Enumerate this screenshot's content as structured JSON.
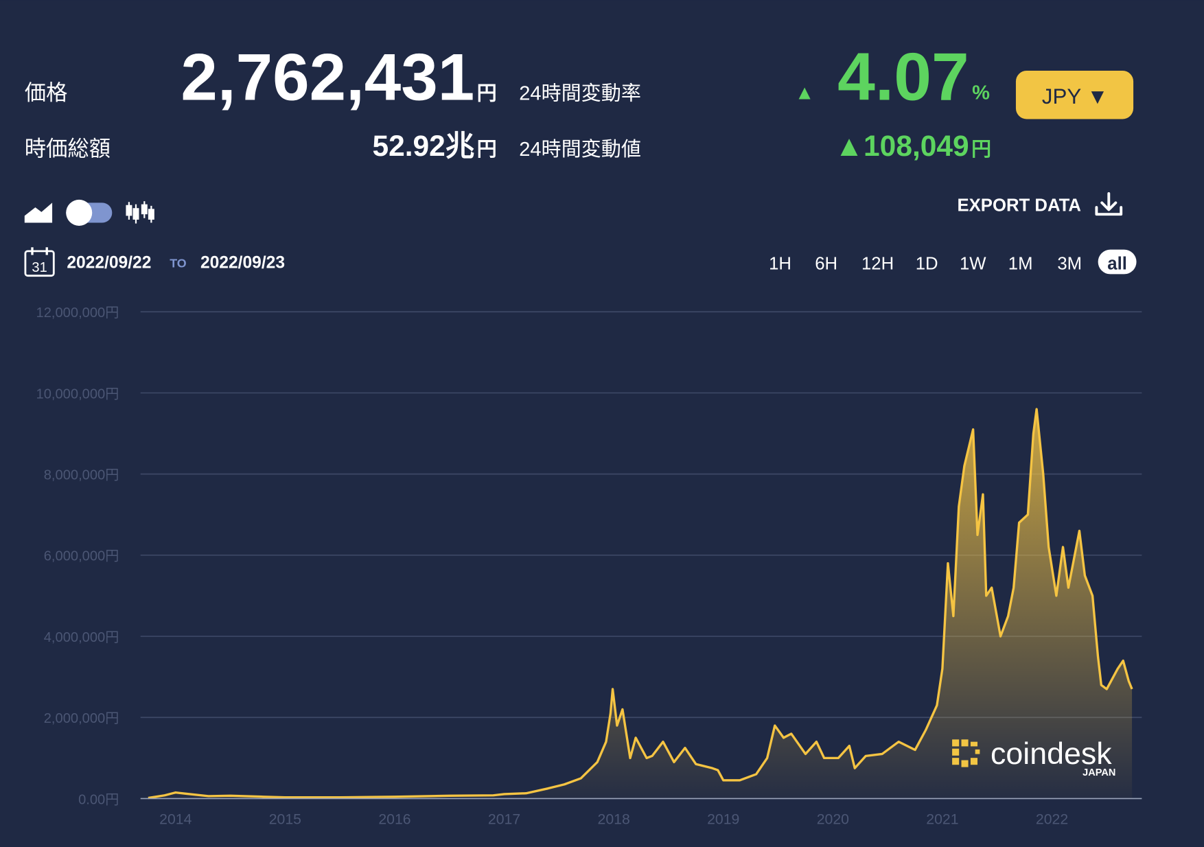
{
  "header": {
    "price_label": "価格",
    "price": "2,762,431",
    "price_unit": "円",
    "change_rate_label": "24時間変動率",
    "change_rate_arrow": "▲",
    "change_rate": "4.07",
    "change_rate_unit": "%",
    "market_cap_label": "時価総額",
    "market_cap": "52.92兆",
    "market_cap_unit": "円",
    "change_value_label": "24時間変動値",
    "change_value": "▲108,049",
    "change_value_unit": "円",
    "currency": "JPY ▼"
  },
  "toolbar": {
    "export": "EXPORT DATA",
    "calendar_day": "31",
    "date_from": "2022/09/22",
    "to": "TO",
    "date_to": "2022/09/23",
    "ranges": [
      "1H",
      "6H",
      "12H",
      "1D",
      "1W",
      "1M",
      "3M",
      "all"
    ],
    "active_range_index": 7
  },
  "watermark": {
    "brand": "coindesk",
    "region": "JAPAN"
  },
  "chart_data": {
    "type": "area",
    "color": "#f5c443",
    "grid": true,
    "xlim": [
      2013.68,
      2022.82
    ],
    "xticks": [
      2014,
      2015,
      2016,
      2017,
      2018,
      2019,
      2020,
      2021,
      2022
    ],
    "ylim": [
      0,
      12000000
    ],
    "yticks": [
      {
        "value": 0,
        "label": "0.00円"
      },
      {
        "value": 2000000,
        "label": "2,000,000円"
      },
      {
        "value": 4000000,
        "label": "4,000,000円"
      },
      {
        "value": 6000000,
        "label": "6,000,000円"
      },
      {
        "value": 8000000,
        "label": "8,000,000円"
      },
      {
        "value": 10000000,
        "label": "10,000,000円"
      },
      {
        "value": 12000000,
        "label": "12,000,000円"
      }
    ],
    "x": [
      2013.75,
      2013.9,
      2014.0,
      2014.1,
      2014.3,
      2014.5,
      2014.8,
      2015.0,
      2015.5,
      2016.0,
      2016.5,
      2016.9,
      2017.0,
      2017.2,
      2017.4,
      2017.55,
      2017.7,
      2017.85,
      2017.93,
      2017.97,
      2017.99,
      2018.03,
      2018.08,
      2018.15,
      2018.2,
      2018.3,
      2018.35,
      2018.45,
      2018.55,
      2018.65,
      2018.75,
      2018.9,
      2018.95,
      2019.0,
      2019.15,
      2019.3,
      2019.4,
      2019.47,
      2019.55,
      2019.62,
      2019.75,
      2019.85,
      2019.92,
      2020.05,
      2020.15,
      2020.2,
      2020.3,
      2020.45,
      2020.6,
      2020.75,
      2020.85,
      2020.95,
      2021.0,
      2021.05,
      2021.1,
      2021.15,
      2021.2,
      2021.28,
      2021.32,
      2021.37,
      2021.4,
      2021.45,
      2021.53,
      2021.6,
      2021.65,
      2021.7,
      2021.78,
      2021.83,
      2021.86,
      2021.92,
      2021.97,
      2022.04,
      2022.1,
      2022.15,
      2022.25,
      2022.3,
      2022.37,
      2022.42,
      2022.45,
      2022.5,
      2022.6,
      2022.65,
      2022.7,
      2022.73
    ],
    "values": [
      15000,
      80000,
      150000,
      120000,
      60000,
      70000,
      45000,
      30000,
      30000,
      45000,
      70000,
      80000,
      110000,
      130000,
      250000,
      350000,
      500000,
      900000,
      1400000,
      2100000,
      2700000,
      1800000,
      2200000,
      1000000,
      1500000,
      1000000,
      1050000,
      1400000,
      900000,
      1250000,
      850000,
      750000,
      700000,
      450000,
      450000,
      600000,
      1000000,
      1800000,
      1500000,
      1600000,
      1100000,
      1400000,
      1000000,
      1000000,
      1300000,
      750000,
      1050000,
      1100000,
      1400000,
      1200000,
      1700000,
      2300000,
      3200000,
      5800000,
      4500000,
      7200000,
      8200000,
      9100000,
      6500000,
      7500000,
      5000000,
      5200000,
      4000000,
      4500000,
      5200000,
      6800000,
      7000000,
      9000000,
      9600000,
      8000000,
      6200000,
      5000000,
      6200000,
      5200000,
      6600000,
      5500000,
      5000000,
      3500000,
      2800000,
      2700000,
      3200000,
      3400000,
      2900000,
      2700000
    ]
  }
}
